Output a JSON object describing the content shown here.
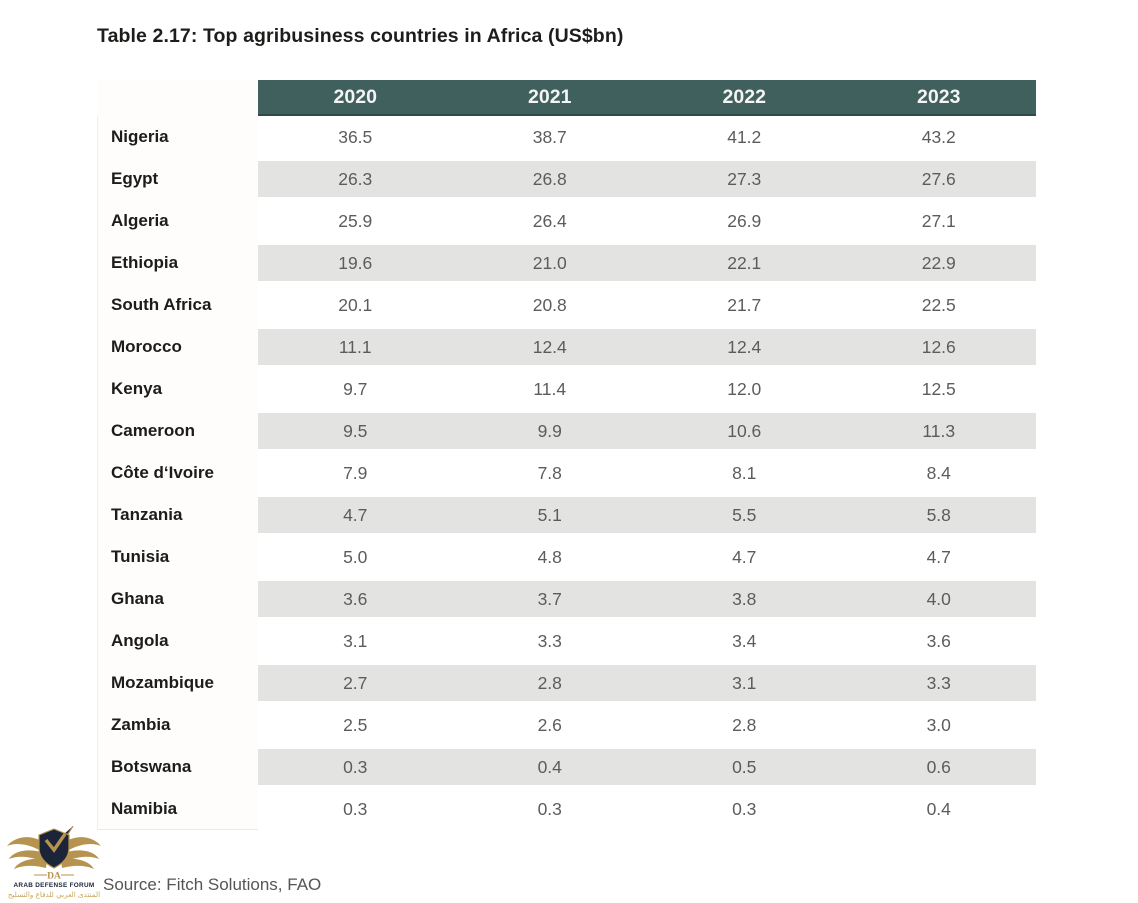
{
  "chart_data": {
    "type": "table",
    "title": "Table 2.17: Top agribusiness countries in Africa (US$bn)",
    "column_headers": [
      "2020",
      "2021",
      "2022",
      "2023"
    ],
    "rows": [
      {
        "country": "Nigeria",
        "values": [
          "36.5",
          "38.7",
          "41.2",
          "43.2"
        ]
      },
      {
        "country": "Egypt",
        "values": [
          "26.3",
          "26.8",
          "27.3",
          "27.6"
        ]
      },
      {
        "country": "Algeria",
        "values": [
          "25.9",
          "26.4",
          "26.9",
          "27.1"
        ]
      },
      {
        "country": "Ethiopia",
        "values": [
          "19.6",
          "21.0",
          "22.1",
          "22.9"
        ]
      },
      {
        "country": "South Africa",
        "values": [
          "20.1",
          "20.8",
          "21.7",
          "22.5"
        ]
      },
      {
        "country": "Morocco",
        "values": [
          "11.1",
          "12.4",
          "12.4",
          "12.6"
        ]
      },
      {
        "country": "Kenya",
        "values": [
          "9.7",
          "11.4",
          "12.0",
          "12.5"
        ]
      },
      {
        "country": "Cameroon",
        "values": [
          "9.5",
          "9.9",
          "10.6",
          "11.3"
        ]
      },
      {
        "country": "Côte d‘Ivoire",
        "values": [
          "7.9",
          "7.8",
          "8.1",
          "8.4"
        ]
      },
      {
        "country": "Tanzania",
        "values": [
          "4.7",
          "5.1",
          "5.5",
          "5.8"
        ]
      },
      {
        "country": "Tunisia",
        "values": [
          "5.0",
          "4.8",
          "4.7",
          "4.7"
        ]
      },
      {
        "country": "Ghana",
        "values": [
          "3.6",
          "3.7",
          "3.8",
          "4.0"
        ]
      },
      {
        "country": "Angola",
        "values": [
          "3.1",
          "3.3",
          "3.4",
          "3.6"
        ]
      },
      {
        "country": "Mozambique",
        "values": [
          "2.7",
          "2.8",
          "3.1",
          "3.3"
        ]
      },
      {
        "country": "Zambia",
        "values": [
          "2.5",
          "2.6",
          "2.8",
          "3.0"
        ]
      },
      {
        "country": "Botswana",
        "values": [
          "0.3",
          "0.4",
          "0.5",
          "0.6"
        ]
      },
      {
        "country": "Namibia",
        "values": [
          "0.3",
          "0.3",
          "0.3",
          "0.4"
        ]
      }
    ],
    "source": "Source: Fitch Solutions, FAO"
  },
  "logo": {
    "monogram": "DA",
    "name_en": "ARAB DEFENSE FORUM",
    "name_ar": "المنتدى العربي للدفاع والتسليح"
  },
  "colors": {
    "header_bg": "#40605e",
    "header_border": "#2f4a49",
    "row_alt": "#e3e3e2",
    "logo_navy": "#1b2438",
    "logo_gold": "#b6934e"
  }
}
